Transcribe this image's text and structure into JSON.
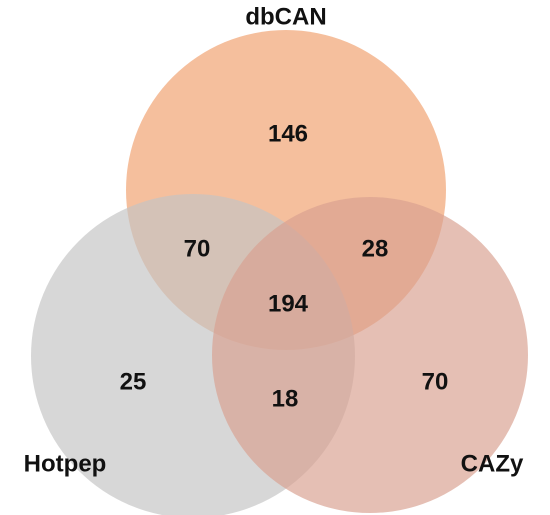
{
  "chart_data": {
    "type": "venn",
    "sets": [
      {
        "name": "dbCAN",
        "color": "#f0a06e"
      },
      {
        "name": "Hotpep",
        "color": "#c4c4c4"
      },
      {
        "name": "CAZy",
        "color": "#d8a090"
      }
    ],
    "regions": [
      {
        "sets": [
          "dbCAN"
        ],
        "value": 146
      },
      {
        "sets": [
          "dbCAN",
          "Hotpep"
        ],
        "value": 70
      },
      {
        "sets": [
          "dbCAN",
          "CAZy"
        ],
        "value": 28
      },
      {
        "sets": [
          "dbCAN",
          "Hotpep",
          "CAZy"
        ],
        "value": 194
      },
      {
        "sets": [
          "Hotpep"
        ],
        "value": 25
      },
      {
        "sets": [
          "Hotpep",
          "CAZy"
        ],
        "value": 18
      },
      {
        "sets": [
          "CAZy"
        ],
        "value": 70
      }
    ]
  }
}
